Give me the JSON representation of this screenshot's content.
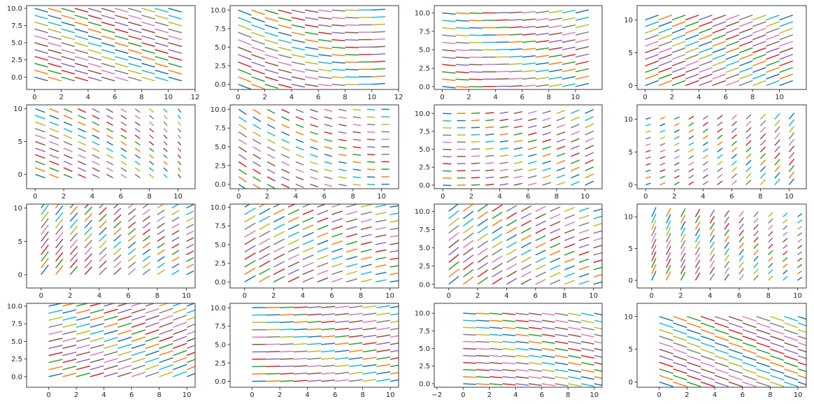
{
  "chart_data": {
    "type": "line",
    "description_of_marks": "Each panel draws short straight line segments (a discretized 2D vector field). Each segment starts at grid point (x0, y0) and ends at (x0 + vx, y0 + vy) in data units. Segments are colored by cycling through the palette.",
    "palette": [
      "#1f77b4",
      "#ff7f0e",
      "#2ca02c",
      "#d62728",
      "#9467bd",
      "#8c564b",
      "#e377c2",
      "#7f7f7f",
      "#bcbd22",
      "#17becf"
    ],
    "panels": [
      {
        "name": "r1c1",
        "xlim": [
          -0.6,
          12
        ],
        "ylim": [
          -1.8,
          10.4
        ],
        "xticks": [
          0,
          2,
          4,
          6,
          8,
          10,
          12
        ],
        "xtick_labels": [
          "0",
          "2",
          "4",
          "6",
          "8",
          "10",
          "12"
        ],
        "yticks": [
          0,
          2.5,
          5,
          7.5,
          10
        ],
        "ytick_labels": [
          "0.0",
          "2.5",
          "5.0",
          "7.5",
          "10.0"
        ],
        "field": {
          "a": 0.0,
          "b": 0.0,
          "c": 0.0,
          "e": 0.0,
          "cx": 1.0,
          "cy": -0.55,
          "scale": 1.0
        }
      },
      {
        "name": "r1c2",
        "xlim": [
          -0.6,
          12
        ],
        "ylim": [
          -0.7,
          10.6
        ],
        "xticks": [
          0,
          2,
          4,
          6,
          8,
          10,
          12
        ],
        "xtick_labels": [
          "0",
          "2",
          "4",
          "6",
          "8",
          "10",
          "12"
        ],
        "yticks": [
          0,
          2.5,
          5,
          7.5,
          10
        ],
        "ytick_labels": [
          "0.0",
          "2.5",
          "5.0",
          "7.5",
          "10.0"
        ],
        "field": {
          "a": 0.0,
          "b": 0.0,
          "c": 0.0,
          "e": 0.08,
          "cx": 1.0,
          "cy": -0.3,
          "scale": 1.0
        }
      },
      {
        "name": "r1c3",
        "xlim": [
          -0.6,
          12
        ],
        "ylim": [
          -0.4,
          11.0
        ],
        "xticks": [
          0,
          2,
          4,
          6,
          8,
          10
        ],
        "xtick_labels": [
          "0",
          "2",
          "4",
          "6",
          "8",
          "10"
        ],
        "yticks": [
          0,
          2.5,
          5,
          7.5,
          10
        ],
        "ytick_labels": [
          "0.0",
          "2.5",
          "5.0",
          "7.5",
          "10.0"
        ],
        "field": {
          "a": 0.0,
          "b": 0.0,
          "c": 0.0,
          "e": 0.06,
          "cx": 1.0,
          "cy": 0.12,
          "scale": 1.0
        }
      },
      {
        "name": "r1c4",
        "xlim": [
          -0.6,
          12
        ],
        "ylim": [
          -0.6,
          12.2
        ],
        "xticks": [
          0,
          2,
          4,
          6,
          8,
          10
        ],
        "xtick_labels": [
          "0",
          "2",
          "4",
          "6",
          "8",
          "10"
        ],
        "yticks": [
          0,
          5,
          10
        ],
        "ytick_labels": [
          "0",
          "5",
          "10"
        ],
        "field": {
          "a": 0.0,
          "b": 0.0,
          "c": 0.0,
          "e": 0.0,
          "cx": 1.0,
          "cy": 0.75,
          "scale": 1.0
        }
      },
      {
        "name": "r2c1",
        "xlim": [
          -0.6,
          11.2
        ],
        "ylim": [
          -2.2,
          10.6
        ],
        "xticks": [
          0,
          2,
          4,
          6,
          8,
          10
        ],
        "xtick_labels": [
          "0",
          "2",
          "4",
          "6",
          "8",
          "10"
        ],
        "yticks": [
          0,
          5,
          10
        ],
        "ytick_labels": [
          "0",
          "5",
          "10"
        ],
        "field": {
          "a": -0.05,
          "b": 0.0,
          "c": 0.0,
          "e": 0.0,
          "cx": 0.7,
          "cy": -0.55,
          "scale": 1.0
        }
      },
      {
        "name": "r2c2",
        "xlim": [
          -0.6,
          11.2
        ],
        "ylim": [
          -0.6,
          10.6
        ],
        "xticks": [
          0,
          2,
          4,
          6,
          8,
          10
        ],
        "xtick_labels": [
          "0",
          "2",
          "4",
          "6",
          "8",
          "10"
        ],
        "yticks": [
          0,
          2.5,
          5,
          7.5,
          10
        ],
        "ytick_labels": [
          "0.0",
          "2.5",
          "5.0",
          "7.5",
          "10.0"
        ],
        "field": {
          "a": 0.0,
          "b": 0.0,
          "c": 0.0,
          "e": 0.07,
          "cx": 0.55,
          "cy": -0.35,
          "scale": 1.0
        }
      },
      {
        "name": "r2c3",
        "xlim": [
          -0.6,
          11.2
        ],
        "ylim": [
          -0.5,
          11.2
        ],
        "xticks": [
          0,
          2,
          4,
          6,
          8,
          10
        ],
        "xtick_labels": [
          "0",
          "2",
          "4",
          "6",
          "8",
          "10"
        ],
        "yticks": [
          0,
          2.5,
          5,
          7.5,
          10
        ],
        "ytick_labels": [
          "0.0",
          "2.5",
          "5.0",
          "7.5",
          "10.0"
        ],
        "field": {
          "a": 0.0,
          "b": 0.0,
          "c": 0.0,
          "e": 0.06,
          "cx": 0.6,
          "cy": 0.25,
          "scale": 1.0
        }
      },
      {
        "name": "r2c4",
        "xlim": [
          -0.6,
          11.2
        ],
        "ylim": [
          -0.6,
          12.2
        ],
        "xticks": [
          0,
          2,
          4,
          6,
          8,
          10
        ],
        "xtick_labels": [
          "0",
          "2",
          "4",
          "6",
          "8",
          "10"
        ],
        "yticks": [
          0,
          5,
          10
        ],
        "ytick_labels": [
          "0",
          "5",
          "10"
        ],
        "field": {
          "a": 0.0,
          "b": 0.0,
          "c": 0.0,
          "e": 0.07,
          "cx": 0.35,
          "cy": 0.6,
          "scale": 1.0
        }
      },
      {
        "name": "r3c1",
        "xlim": [
          -1.0,
          10.6
        ],
        "ylim": [
          -2.0,
          10.6
        ],
        "xticks": [
          0,
          2,
          4,
          6,
          8,
          10
        ],
        "xtick_labels": [
          "0",
          "2",
          "4",
          "6",
          "8",
          "10"
        ],
        "yticks": [
          0,
          5,
          10
        ],
        "ytick_labels": [
          "0",
          "5",
          "10"
        ],
        "field": {
          "a": 0.0,
          "b": 0.0,
          "c": 0.0,
          "e": -0.09,
          "cx": 0.5,
          "cy": 1.0,
          "scale": 1.0
        }
      },
      {
        "name": "r3c2",
        "xlim": [
          -1.0,
          10.6
        ],
        "ylim": [
          -0.8,
          10.4
        ],
        "xticks": [
          0,
          2,
          4,
          6,
          8,
          10
        ],
        "xtick_labels": [
          "0",
          "2",
          "4",
          "6",
          "8",
          "10"
        ],
        "yticks": [
          0,
          2.5,
          5,
          7.5,
          10
        ],
        "ytick_labels": [
          "0.0",
          "2.5",
          "5.0",
          "7.5",
          "10.0"
        ],
        "field": {
          "a": 0.0,
          "b": 0.0,
          "c": 0.0,
          "e": -0.065,
          "cx": 0.75,
          "cy": 0.55,
          "scale": 1.0
        }
      },
      {
        "name": "r3c3",
        "xlim": [
          -1.0,
          10.6
        ],
        "ylim": [
          -0.5,
          11.0
        ],
        "xticks": [
          0,
          2,
          4,
          6,
          8,
          10
        ],
        "xtick_labels": [
          "0",
          "2",
          "4",
          "6",
          "8",
          "10"
        ],
        "yticks": [
          0,
          2.5,
          5,
          7.5,
          10
        ],
        "ytick_labels": [
          "0.0",
          "2.5",
          "5.0",
          "7.5",
          "10.0"
        ],
        "field": {
          "a": 0.0,
          "b": 0.0,
          "c": 0.0,
          "e": -0.07,
          "cx": 0.7,
          "cy": 0.75,
          "scale": 1.0
        }
      },
      {
        "name": "r3c4",
        "xlim": [
          -1.0,
          10.6
        ],
        "ylim": [
          -1.2,
          12.0
        ],
        "xticks": [
          0,
          2,
          4,
          6,
          8,
          10
        ],
        "xtick_labels": [
          "0",
          "2",
          "4",
          "6",
          "8",
          "10"
        ],
        "yticks": [
          0,
          5,
          10
        ],
        "ytick_labels": [
          "0",
          "5",
          "10"
        ],
        "field": {
          "a": 0.0,
          "b": 0.0,
          "c": 0.0,
          "e": -0.1,
          "cx": 0.3,
          "cy": 1.0,
          "scale": 1.0
        }
      },
      {
        "name": "r4c1",
        "xlim": [
          -1.6,
          10.6
        ],
        "ylim": [
          -1.5,
          10.4
        ],
        "xticks": [
          0,
          2,
          4,
          6,
          8,
          10
        ],
        "xtick_labels": [
          "0",
          "2",
          "4",
          "6",
          "8",
          "10"
        ],
        "yticks": [
          0,
          2.5,
          5,
          7.5,
          10
        ],
        "ytick_labels": [
          "0.0",
          "2.5",
          "5.0",
          "7.5",
          "10.0"
        ],
        "field": {
          "a": 0.0,
          "b": 0.0,
          "c": 0.0,
          "e": 0.03,
          "cx": 1.0,
          "cy": 0.6,
          "scale": 1.0
        }
      },
      {
        "name": "r4c2",
        "xlim": [
          -1.6,
          10.6
        ],
        "ylim": [
          -0.8,
          10.6
        ],
        "xticks": [
          0,
          2,
          4,
          6,
          8,
          10
        ],
        "xtick_labels": [
          "0",
          "2",
          "4",
          "6",
          "8",
          "10"
        ],
        "yticks": [
          0,
          2.5,
          5,
          7.5,
          10
        ],
        "ytick_labels": [
          "0.0",
          "2.5",
          "5.0",
          "7.5",
          "10.0"
        ],
        "field": {
          "a": 0.0,
          "b": 0.0,
          "c": 0.0,
          "e": 0.03,
          "cx": 1.0,
          "cy": 0.18,
          "scale": 1.0
        }
      },
      {
        "name": "r4c3",
        "xlim": [
          -2.2,
          10.6
        ],
        "ylim": [
          -0.5,
          11.4
        ],
        "xticks": [
          -2,
          0,
          2,
          4,
          6,
          8,
          10
        ],
        "xtick_labels": [
          "−2",
          "0",
          "2",
          "4",
          "6",
          "8",
          "10"
        ],
        "yticks": [
          0,
          2.5,
          5,
          7.5,
          10
        ],
        "ytick_labels": [
          "0.0",
          "2.5",
          "5.0",
          "7.5",
          "10.0"
        ],
        "field": {
          "a": 0.0,
          "b": 0.0,
          "c": 0.0,
          "e": -0.03,
          "cx": 1.0,
          "cy": -0.25,
          "scale": 1.0
        }
      },
      {
        "name": "r4c4",
        "xlim": [
          -1.6,
          10.6
        ],
        "ylim": [
          -0.8,
          12.0
        ],
        "xticks": [
          0,
          2,
          4,
          6,
          8,
          10
        ],
        "xtick_labels": [
          "0",
          "2",
          "4",
          "6",
          "8",
          "10"
        ],
        "yticks": [
          0,
          5,
          10
        ],
        "ytick_labels": [
          "0",
          "5",
          "10"
        ],
        "field": {
          "a": 0.0,
          "b": 0.0,
          "c": 0.0,
          "e": 0.0,
          "cx": 1.0,
          "cy": -0.7,
          "scale": 1.0
        }
      }
    ]
  }
}
